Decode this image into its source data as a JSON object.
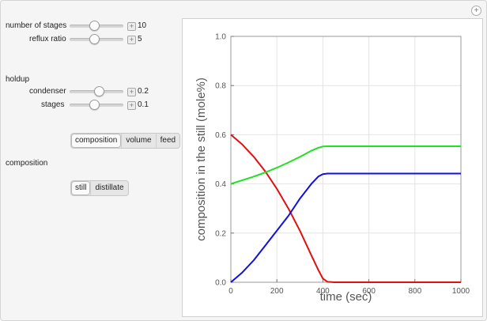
{
  "controls": {
    "number_of_stages": {
      "label": "number of stages",
      "value": "10",
      "fraction": 0.45
    },
    "reflux_ratio": {
      "label": "reflux ratio",
      "value": "5",
      "fraction": 0.45
    },
    "holdup_heading": "holdup",
    "condenser": {
      "label": "condenser",
      "value": "0.2",
      "fraction": 0.55
    },
    "stages": {
      "label": "stages",
      "value": "0.1",
      "fraction": 0.45
    },
    "view_tabs": [
      "composition",
      "volume",
      "feed"
    ],
    "view_selected": "composition",
    "composition_heading": "composition",
    "composition_tabs": [
      "still",
      "distillate"
    ],
    "composition_selected": "still"
  },
  "chart_data": {
    "type": "line",
    "xlabel": "time (sec)",
    "ylabel": "composition in the still (mole%)",
    "xlim": [
      0,
      1000
    ],
    "ylim": [
      0,
      1.0
    ],
    "xticks": [
      0,
      200,
      400,
      600,
      800,
      1000
    ],
    "yticks": [
      0.0,
      0.2,
      0.4,
      0.6,
      0.8,
      1.0
    ],
    "ytick_labels": [
      "0.0",
      "0.2",
      "0.4",
      "0.6",
      "0.8",
      "1.0"
    ],
    "grid": true,
    "series": [
      {
        "color": "#e01010",
        "x": [
          0,
          50,
          100,
          150,
          200,
          250,
          300,
          350,
          380,
          400,
          420,
          450,
          500,
          600,
          800,
          1000
        ],
        "y": [
          0.6,
          0.56,
          0.51,
          0.45,
          0.38,
          0.3,
          0.21,
          0.11,
          0.05,
          0.015,
          0.002,
          0.0,
          0.0,
          0.0,
          0.0,
          0.0
        ]
      },
      {
        "color": "#22e022",
        "x": [
          0,
          50,
          100,
          150,
          200,
          250,
          300,
          350,
          380,
          400,
          420,
          450,
          500,
          600,
          800,
          1000
        ],
        "y": [
          0.4,
          0.415,
          0.43,
          0.447,
          0.466,
          0.487,
          0.51,
          0.535,
          0.547,
          0.552,
          0.553,
          0.553,
          0.553,
          0.553,
          0.553,
          0.553
        ]
      },
      {
        "color": "#1010e0",
        "x": [
          0,
          50,
          100,
          150,
          200,
          250,
          300,
          350,
          380,
          400,
          420,
          450,
          500,
          600,
          800,
          1000
        ],
        "y": [
          0.0,
          0.04,
          0.09,
          0.15,
          0.21,
          0.27,
          0.34,
          0.4,
          0.43,
          0.44,
          0.442,
          0.442,
          0.442,
          0.442,
          0.442,
          0.442
        ]
      }
    ]
  }
}
